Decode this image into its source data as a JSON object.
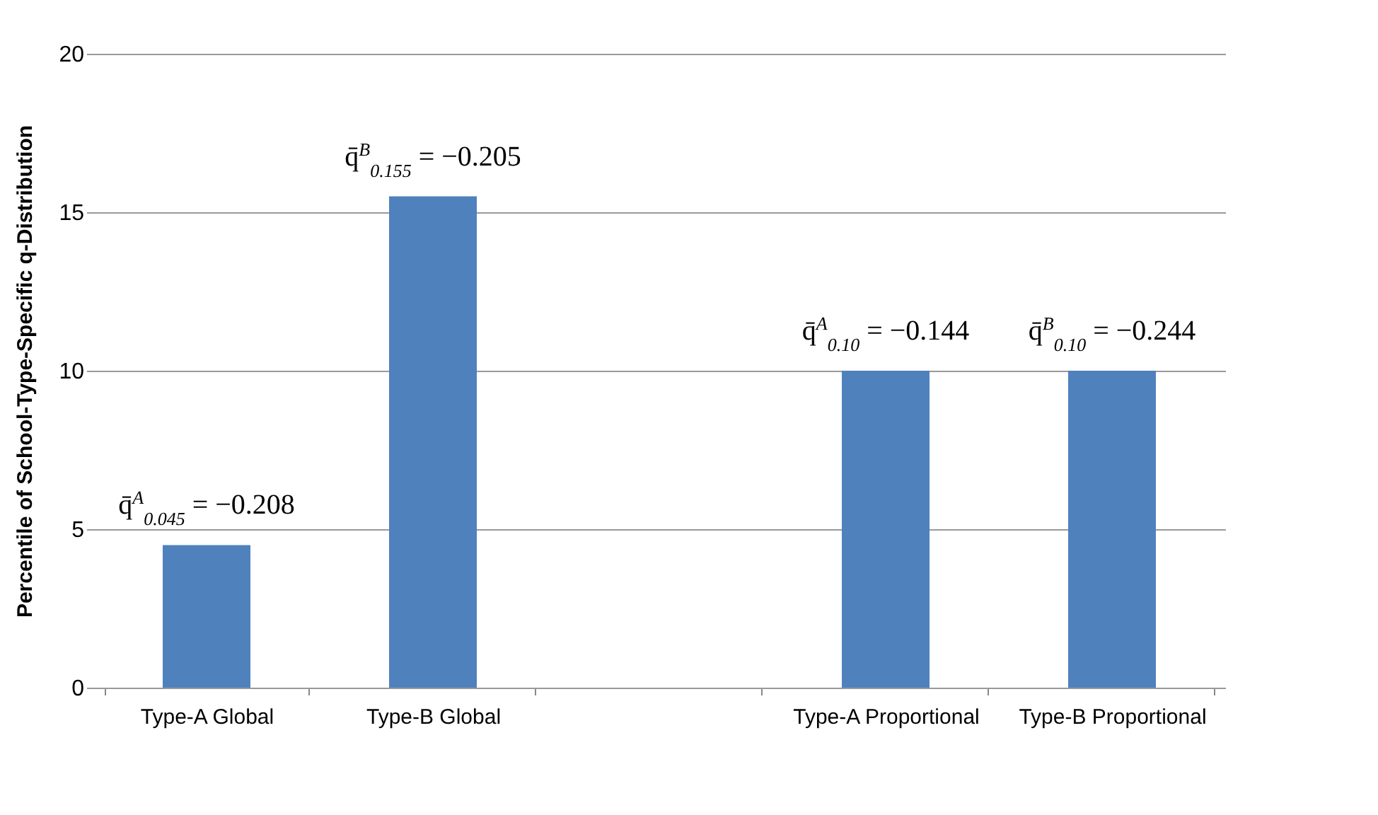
{
  "chart_data": {
    "type": "bar",
    "categories": [
      "Type-A Global",
      "Type-B Global",
      null,
      "Type-A Proportional",
      "Type-B Proportional"
    ],
    "values": [
      4.5,
      15.5,
      null,
      10,
      10
    ],
    "color": "#4f81bd",
    "ylabel": "Percentile of School-Type-Specific q-Distribution",
    "ylim": [
      0,
      20
    ],
    "yticks": [
      0,
      5,
      10,
      15,
      20
    ],
    "grid": "y",
    "annotations": [
      {
        "text": "q̄$^{A}$$_{0.045}$ = −0.208",
        "x": "Type-A Global",
        "y": 4.5
      },
      {
        "text": "q̄$^{B}$$_{0.155}$ = −0.205",
        "x": "Type-B Global",
        "y": 15.5
      },
      {
        "text": "q̄$^{A}$$_{0.10}$ = −0.144",
        "x": "Type-A Proportional",
        "y": 10
      },
      {
        "text": "q̄$^{B}$$_{0.10}$ = −0.244",
        "x": "Type-B Proportional",
        "y": 10
      }
    ]
  }
}
